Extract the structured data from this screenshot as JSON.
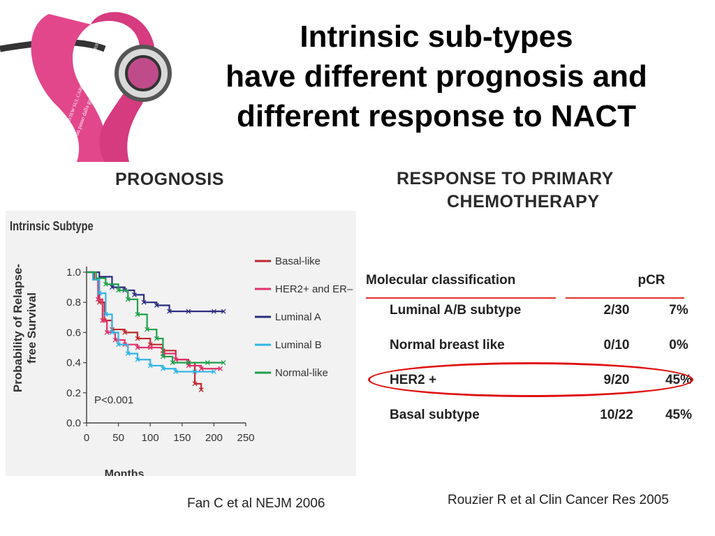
{
  "slide": {
    "title_lines": [
      "Intrinsic sub-types",
      "have different prognosis and",
      "different response to NACT"
    ],
    "logo": {
      "ribbon_text_1": "OVERVIEW SUL CARCINOMA MAMMARIO",
      "ribbon_text_2": "a un passo dalla guarigione!"
    },
    "prognosis_header": "PROGNOSIS",
    "response_header_lines": [
      "RESPONSE TO PRIMARY",
      "CHEMOTHERAPY"
    ],
    "citation_left": "Fan C et al NEJM 2006",
    "citation_right": "Rouzier R et al Clin Cancer Res 2005",
    "colors": {
      "highlight": "#e01010",
      "rule": "#e2312a"
    }
  },
  "chart_data": [
    {
      "type": "line",
      "title": "Intrinsic Subtype",
      "xlabel": "Months",
      "ylabel_lines": [
        "Probability of Relapse-",
        "free Survival"
      ],
      "xlim": [
        0,
        250
      ],
      "ylim": [
        0,
        1.0
      ],
      "x_ticks": [
        "0",
        "50",
        "100",
        "150",
        "200",
        "250"
      ],
      "y_ticks": [
        "0.0",
        "0.2",
        "0.4",
        "0.6",
        "0.8",
        "1.0"
      ],
      "annotation": "P<0.001",
      "legend_position": "right",
      "series": [
        {
          "name": "Basal-like",
          "color": "#c0272d",
          "points": [
            [
              0,
              1.0
            ],
            [
              12,
              0.95
            ],
            [
              20,
              0.8
            ],
            [
              28,
              0.68
            ],
            [
              40,
              0.62
            ],
            [
              60,
              0.6
            ],
            [
              80,
              0.56
            ],
            [
              100,
              0.52
            ],
            [
              120,
              0.48
            ],
            [
              140,
              0.42
            ],
            [
              160,
              0.4
            ],
            [
              170,
              0.26
            ],
            [
              180,
              0.22
            ]
          ]
        },
        {
          "name": "HER2+ and ER–",
          "color": "#e0306a",
          "points": [
            [
              0,
              1.0
            ],
            [
              10,
              0.95
            ],
            [
              18,
              0.82
            ],
            [
              25,
              0.68
            ],
            [
              32,
              0.6
            ],
            [
              45,
              0.55
            ],
            [
              60,
              0.52
            ],
            [
              80,
              0.5
            ],
            [
              100,
              0.5
            ],
            [
              120,
              0.46
            ],
            [
              140,
              0.42
            ],
            [
              160,
              0.38
            ],
            [
              180,
              0.36
            ],
            [
              210,
              0.36
            ]
          ]
        },
        {
          "name": "Luminal A",
          "color": "#2b2d80",
          "points": [
            [
              0,
              1.0
            ],
            [
              20,
              0.97
            ],
            [
              40,
              0.9
            ],
            [
              60,
              0.88
            ],
            [
              75,
              0.85
            ],
            [
              90,
              0.8
            ],
            [
              110,
              0.78
            ],
            [
              130,
              0.74
            ],
            [
              160,
              0.74
            ],
            [
              200,
              0.74
            ],
            [
              215,
              0.74
            ]
          ]
        },
        {
          "name": "Luminal B",
          "color": "#2fb5e6",
          "points": [
            [
              0,
              1.0
            ],
            [
              10,
              0.95
            ],
            [
              20,
              0.86
            ],
            [
              30,
              0.72
            ],
            [
              40,
              0.6
            ],
            [
              50,
              0.52
            ],
            [
              65,
              0.46
            ],
            [
              80,
              0.42
            ],
            [
              100,
              0.38
            ],
            [
              120,
              0.36
            ],
            [
              140,
              0.34
            ],
            [
              170,
              0.34
            ],
            [
              200,
              0.34
            ]
          ]
        },
        {
          "name": "Normal-like",
          "color": "#1ea04a",
          "points": [
            [
              0,
              1.0
            ],
            [
              15,
              0.96
            ],
            [
              30,
              0.92
            ],
            [
              50,
              0.88
            ],
            [
              65,
              0.82
            ],
            [
              80,
              0.72
            ],
            [
              95,
              0.62
            ],
            [
              110,
              0.56
            ],
            [
              120,
              0.44
            ],
            [
              135,
              0.4
            ],
            [
              160,
              0.4
            ],
            [
              190,
              0.4
            ],
            [
              215,
              0.4
            ]
          ]
        }
      ]
    },
    {
      "type": "table",
      "columns": [
        "Molecular classification",
        "pCR"
      ],
      "rows": [
        {
          "label": "Luminal A/B subtype",
          "fraction": "2/30",
          "percent": "7%"
        },
        {
          "label": "Normal breast like",
          "fraction": "0/10",
          "percent": "0%"
        },
        {
          "label": "HER2 +",
          "fraction": "9/20",
          "percent": "45%",
          "highlighted": true
        },
        {
          "label": "Basal subtype",
          "fraction": "10/22",
          "percent": "45%"
        }
      ]
    }
  ]
}
